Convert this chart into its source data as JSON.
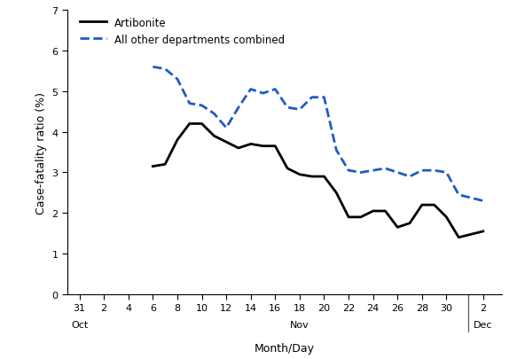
{
  "title": "",
  "ylabel": "Case-fatality ratio (%)",
  "xlabel": "Month/Day",
  "ylim": [
    0,
    7
  ],
  "yticks": [
    0,
    1,
    2,
    3,
    4,
    5,
    6,
    7
  ],
  "background_color": "#ffffff",
  "artibonite": {
    "x": [
      6,
      7,
      8,
      9,
      10,
      11,
      12,
      13,
      14,
      15,
      16,
      17,
      18,
      19,
      20,
      21,
      22,
      23,
      24,
      25,
      26,
      27,
      28,
      29,
      30,
      31,
      33
    ],
    "y": [
      3.15,
      3.2,
      3.8,
      4.2,
      4.2,
      3.9,
      3.75,
      3.6,
      3.7,
      3.65,
      3.65,
      3.1,
      2.95,
      2.9,
      2.9,
      2.5,
      1.9,
      1.9,
      2.05,
      2.05,
      1.65,
      1.75,
      2.2,
      2.2,
      1.9,
      1.4,
      1.55
    ],
    "color": "#000000",
    "linestyle": "-",
    "linewidth": 2.0,
    "label": "Artibonite"
  },
  "other": {
    "x": [
      6,
      7,
      8,
      9,
      10,
      11,
      12,
      13,
      14,
      15,
      16,
      17,
      18,
      19,
      20,
      21,
      22,
      23,
      24,
      25,
      26,
      27,
      28,
      29,
      30,
      31,
      33
    ],
    "y": [
      5.6,
      5.55,
      5.3,
      4.7,
      4.65,
      4.45,
      4.1,
      4.6,
      5.05,
      4.95,
      5.05,
      4.6,
      4.55,
      4.85,
      4.85,
      3.55,
      3.05,
      3.0,
      3.05,
      3.1,
      3.0,
      2.9,
      3.05,
      3.05,
      3.0,
      2.45,
      2.3
    ],
    "color": "#1f5bc4",
    "linestyle": "--",
    "linewidth": 2.0,
    "label": "All other departments combined"
  },
  "xtick_positions": [
    0,
    2,
    4,
    6,
    8,
    10,
    12,
    14,
    16,
    18,
    20,
    22,
    24,
    26,
    28,
    30,
    33
  ],
  "xtick_labels": [
    "31",
    "2",
    "4",
    "6",
    "8",
    "10",
    "12",
    "14",
    "16",
    "18",
    "20",
    "22",
    "24",
    "26",
    "28",
    "30",
    "2"
  ],
  "xlim": [
    -1,
    34.5
  ],
  "sep_line_x": 31.8,
  "oct_x": 0,
  "nov_x": 18,
  "dec_x": 33
}
